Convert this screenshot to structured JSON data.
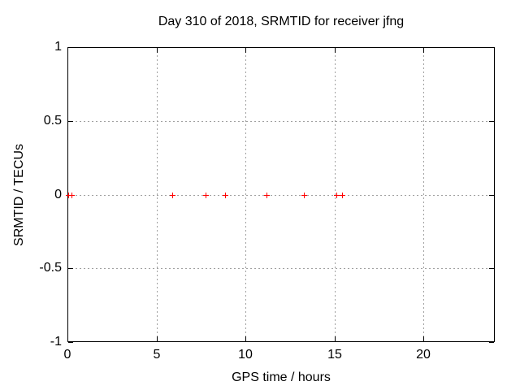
{
  "chart_data": {
    "type": "scatter",
    "title": "Day 310 of 2018, SRMTID for receiver jfng",
    "xlabel": "GPS time / hours",
    "ylabel": "SRMTID / TECUs",
    "xlim": [
      0,
      24
    ],
    "ylim": [
      -1,
      1
    ],
    "xticks": [
      0,
      5,
      10,
      15,
      20
    ],
    "yticks": [
      -1,
      -0.5,
      0,
      0.5,
      1
    ],
    "grid": true,
    "legend": "none",
    "series": [
      {
        "name": "SRMTID",
        "marker": "plus",
        "color": "#ff0000",
        "x": [
          0.05,
          0.25,
          5.9,
          7.75,
          8.85,
          11.2,
          13.3,
          15.1,
          15.4
        ],
        "y": [
          0,
          0,
          0,
          0,
          0,
          0,
          0,
          0,
          0
        ]
      }
    ]
  },
  "colors": {
    "background": "#ffffff",
    "border": "#000000",
    "grid": "#a0a0a0",
    "text": "#000000",
    "point": "#ff0000"
  }
}
